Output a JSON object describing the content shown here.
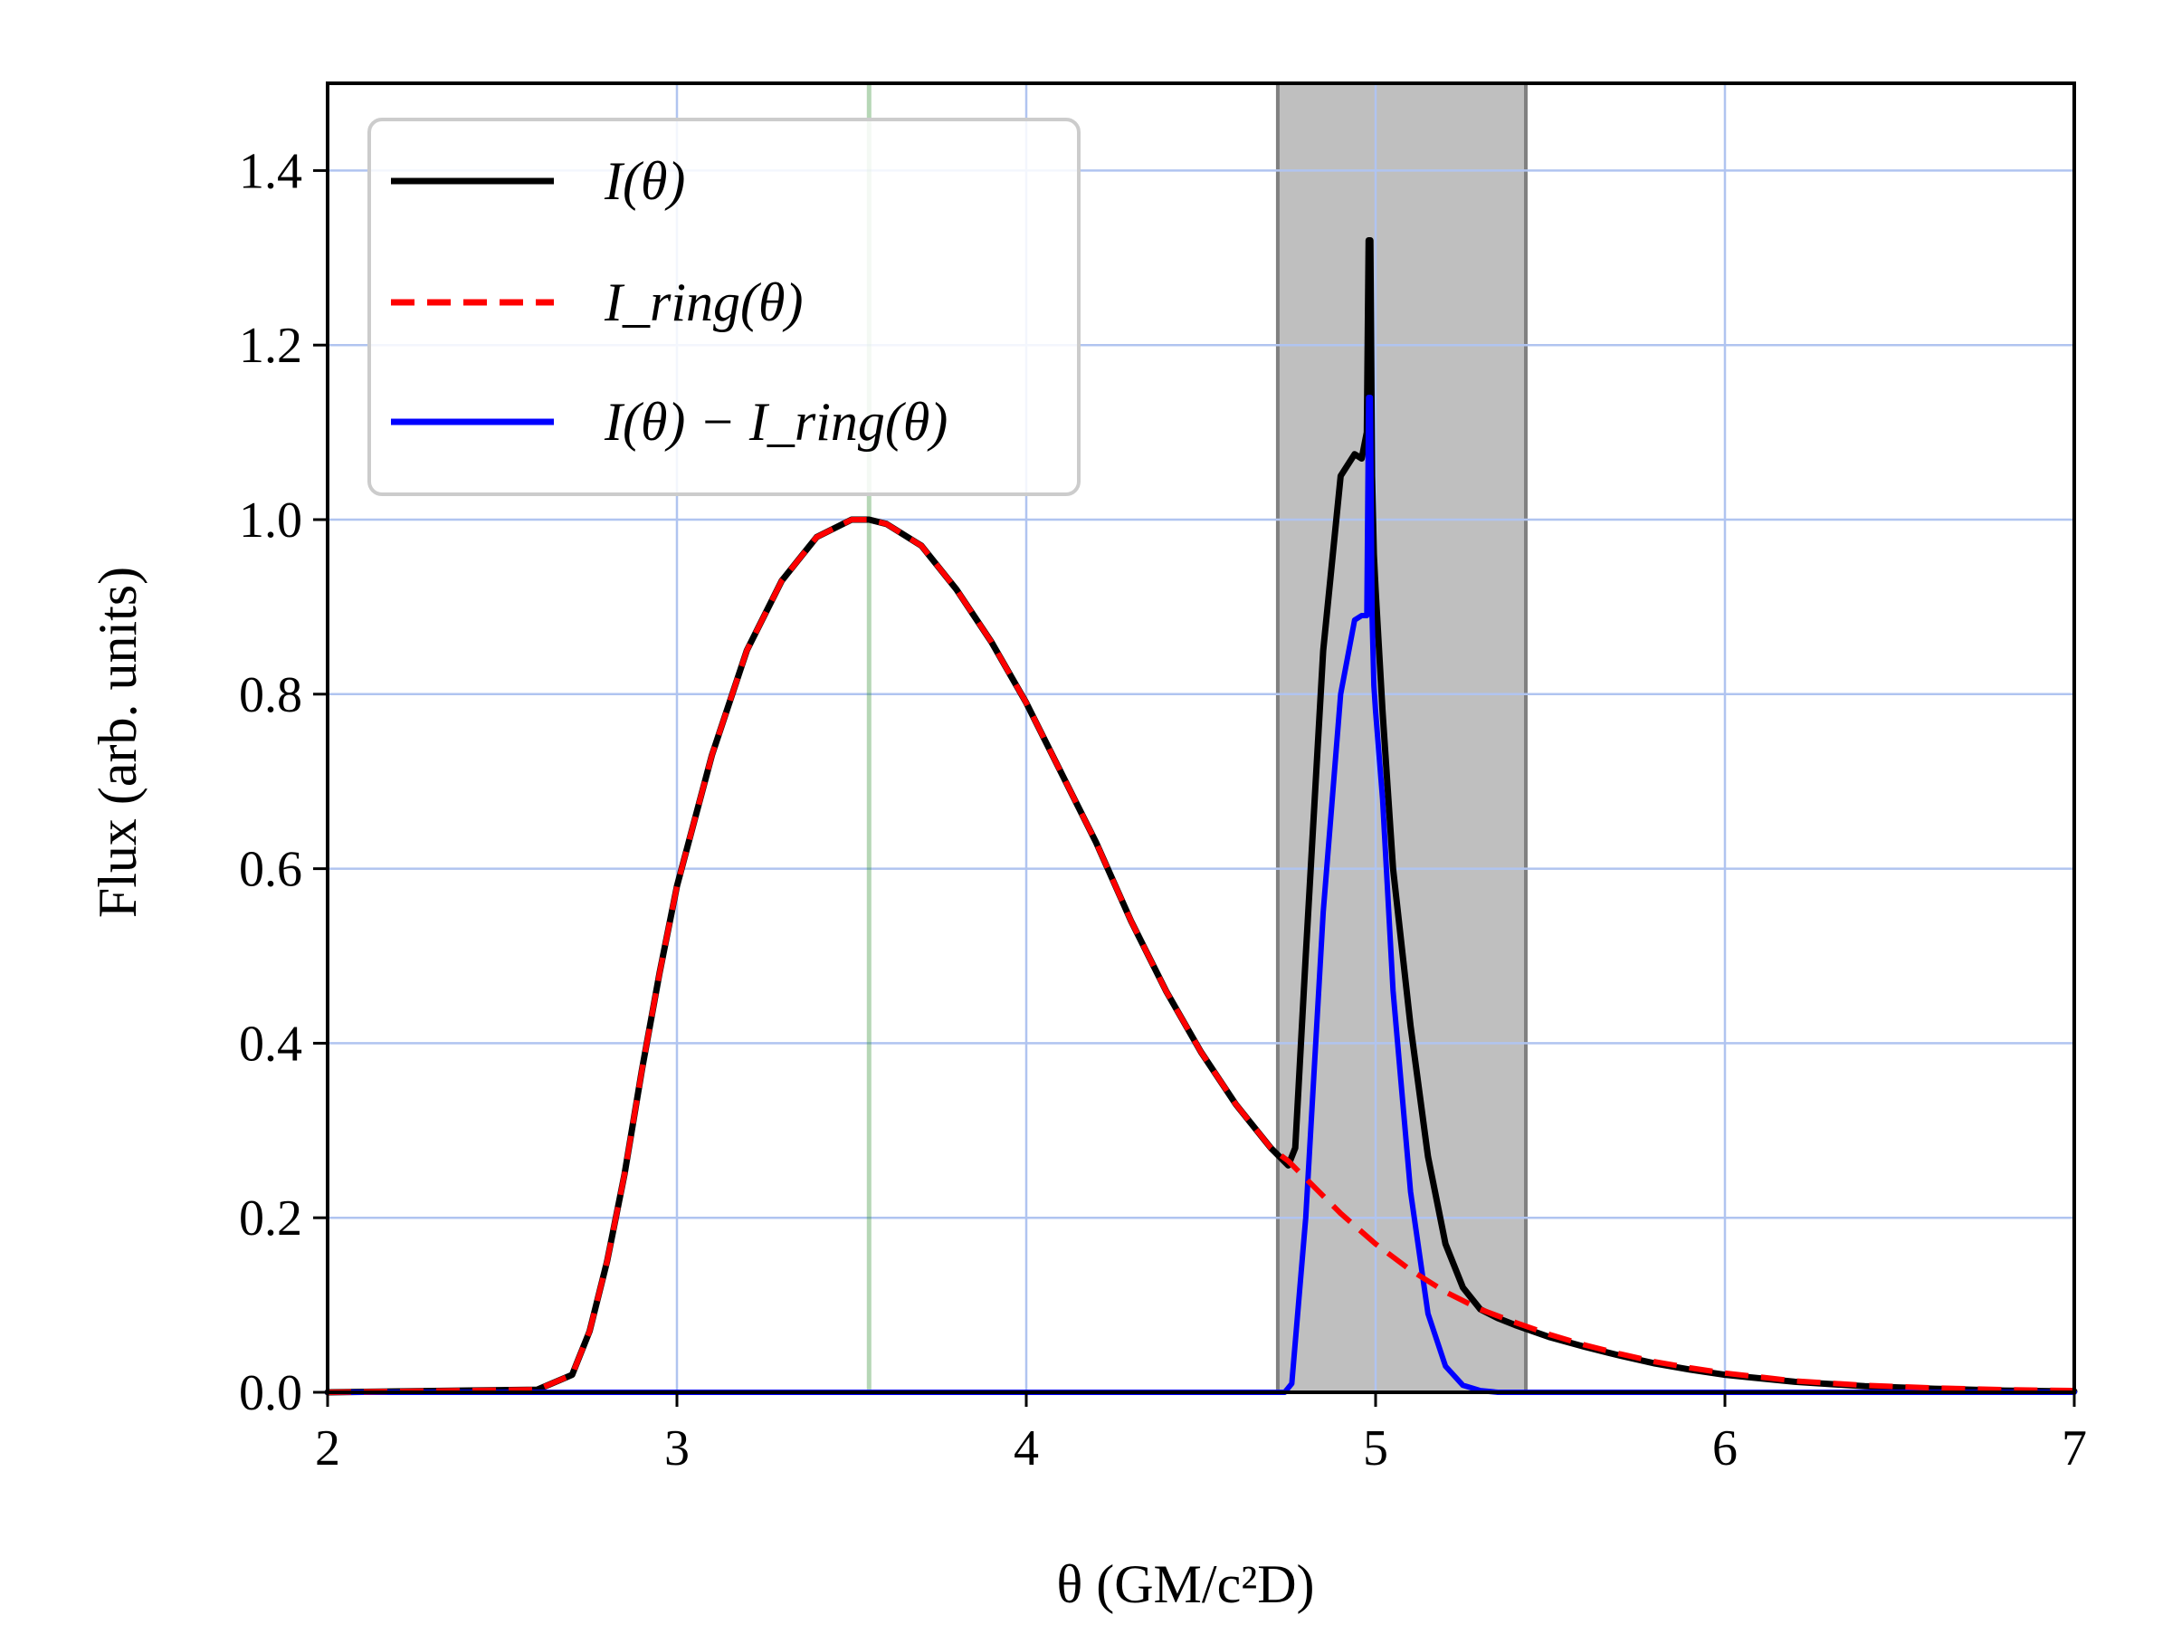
{
  "colors": {
    "total": "#000000",
    "ring": "#ff0000",
    "difference": "#0000ff",
    "shade": "#bfbfbf",
    "shade_edge": "#808080",
    "vline": "#2e8b2e",
    "grid": "#b0c4f0"
  },
  "chart_data": {
    "type": "line",
    "xlabel": "θ (GM/c²D)",
    "ylabel": "Flux (arb. units)",
    "xlim": [
      2,
      7
    ],
    "ylim": [
      0,
      1.5
    ],
    "xticks": [
      "2",
      "3",
      "4",
      "5",
      "6",
      "7"
    ],
    "yticks": [
      "0.0",
      "0.2",
      "0.4",
      "0.6",
      "0.8",
      "1.0",
      "1.2",
      "1.4"
    ],
    "grid": true,
    "legend_position": "top-left",
    "shaded_region": {
      "x0": 4.72,
      "x1": 5.43
    },
    "vertical_line": {
      "x": 3.55
    },
    "series": [
      {
        "key": "total",
        "name": "I(θ)",
        "style": "solid",
        "x": [
          2.0,
          2.6,
          2.7,
          2.75,
          2.8,
          2.85,
          2.9,
          2.95,
          3.0,
          3.1,
          3.2,
          3.3,
          3.4,
          3.5,
          3.55,
          3.6,
          3.7,
          3.8,
          3.9,
          4.0,
          4.1,
          4.2,
          4.3,
          4.4,
          4.5,
          4.6,
          4.7,
          4.75,
          4.77,
          4.8,
          4.85,
          4.9,
          4.94,
          4.96,
          4.975,
          4.98,
          4.985,
          4.99,
          4.995,
          5.0,
          5.02,
          5.05,
          5.1,
          5.15,
          5.2,
          5.25,
          5.3,
          5.35,
          5.4,
          5.5,
          5.6,
          5.7,
          5.8,
          5.9,
          6.0,
          6.2,
          6.4,
          6.6,
          6.8,
          7.0
        ],
        "y": [
          0.0,
          0.003,
          0.02,
          0.07,
          0.15,
          0.25,
          0.37,
          0.48,
          0.58,
          0.73,
          0.85,
          0.93,
          0.98,
          1.0,
          1.0,
          0.995,
          0.97,
          0.92,
          0.86,
          0.79,
          0.71,
          0.63,
          0.54,
          0.46,
          0.39,
          0.33,
          0.28,
          0.26,
          0.28,
          0.5,
          0.85,
          1.05,
          1.075,
          1.07,
          1.1,
          1.32,
          1.32,
          1.05,
          0.96,
          0.92,
          0.78,
          0.6,
          0.42,
          0.27,
          0.17,
          0.12,
          0.095,
          0.085,
          0.077,
          0.063,
          0.052,
          0.042,
          0.033,
          0.026,
          0.02,
          0.012,
          0.007,
          0.004,
          0.002,
          0.001
        ]
      },
      {
        "key": "ring",
        "name": "I_ring(θ)",
        "style": "dashed",
        "x": [
          2.0,
          2.6,
          2.7,
          2.75,
          2.8,
          2.85,
          2.9,
          2.95,
          3.0,
          3.1,
          3.2,
          3.3,
          3.4,
          3.5,
          3.55,
          3.6,
          3.7,
          3.8,
          3.9,
          4.0,
          4.1,
          4.2,
          4.3,
          4.4,
          4.5,
          4.6,
          4.7,
          4.75,
          4.8,
          4.9,
          5.0,
          5.1,
          5.2,
          5.3,
          5.4,
          5.5,
          5.6,
          5.7,
          5.8,
          5.9,
          6.0,
          6.2,
          6.4,
          6.6,
          6.8,
          7.0
        ],
        "y": [
          0.0,
          0.003,
          0.02,
          0.07,
          0.15,
          0.25,
          0.37,
          0.48,
          0.58,
          0.73,
          0.85,
          0.93,
          0.98,
          1.0,
          1.0,
          0.995,
          0.97,
          0.92,
          0.86,
          0.79,
          0.71,
          0.63,
          0.54,
          0.46,
          0.39,
          0.33,
          0.28,
          0.265,
          0.245,
          0.205,
          0.17,
          0.14,
          0.115,
          0.095,
          0.08,
          0.066,
          0.054,
          0.044,
          0.035,
          0.028,
          0.022,
          0.013,
          0.008,
          0.005,
          0.003,
          0.002
        ]
      },
      {
        "key": "difference",
        "name": "I(θ) − I_ring(θ)",
        "style": "solid",
        "x": [
          2.0,
          4.74,
          4.76,
          4.8,
          4.85,
          4.9,
          4.94,
          4.96,
          4.975,
          4.98,
          4.985,
          4.99,
          4.995,
          5.0,
          5.02,
          5.05,
          5.1,
          5.15,
          5.2,
          5.25,
          5.3,
          5.35,
          5.4,
          7.0
        ],
        "y": [
          0.0,
          0.0,
          0.01,
          0.2,
          0.55,
          0.8,
          0.885,
          0.89,
          0.89,
          1.14,
          1.14,
          0.89,
          0.81,
          0.78,
          0.68,
          0.46,
          0.23,
          0.09,
          0.03,
          0.008,
          0.002,
          0.0,
          0.0,
          0.0
        ]
      }
    ]
  }
}
